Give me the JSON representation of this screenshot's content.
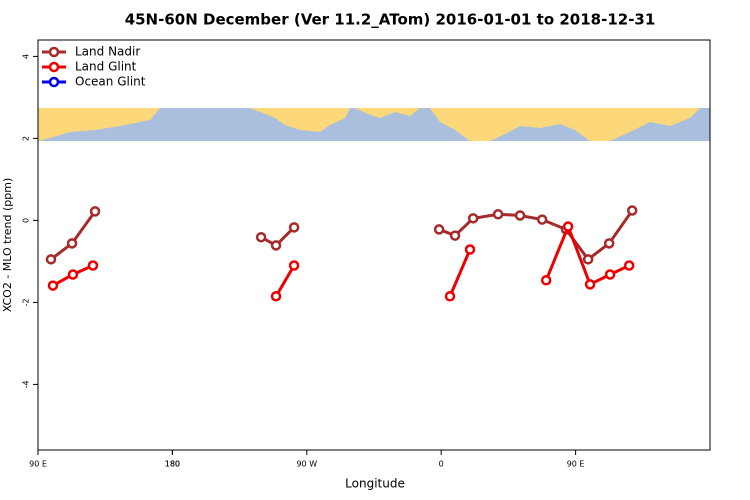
{
  "chart_data": {
    "type": "line",
    "title": "45N-60N December (Ver 11.2_ATom)   2016-01-01 to 2018-12-31",
    "xlabel": "Longitude",
    "ylabel": "XCO2 - MLO trend (ppm)",
    "xlim": [
      90,
      540
    ],
    "ylim": [
      -5.6,
      4.4
    ],
    "xticks": [
      {
        "value": 90,
        "label": "90 E"
      },
      180,
      {
        "value": 270,
        "label": "90 W"
      },
      {
        "value": 360,
        "label": "0"
      },
      {
        "value": 450,
        "label": "90 E"
      },
      180.0001
    ],
    "yticks": [
      4,
      2,
      0,
      -2,
      -4
    ],
    "legend": "top-left",
    "series": [
      {
        "name": "Land Nadir",
        "color": "#a52a2a",
        "x": [
          98.7,
          112.8,
          128.2,
          null,
          239.4,
          249.4,
          261.5,
          null,
          358.6,
          369.3,
          381.4,
          398.1,
          412.8,
          427.6,
          443.6,
          458.4,
          472.5,
          487.9
        ],
        "values": [
          -0.95,
          -0.56,
          0.22,
          null,
          -0.41,
          -0.61,
          -0.17,
          null,
          -0.22,
          -0.37,
          0.05,
          0.15,
          0.12,
          0.02,
          -0.22,
          -0.95,
          -0.56,
          0.24
        ]
      },
      {
        "name": "Land Glint",
        "color": "#ee0000",
        "x": [
          100,
          113.4,
          126.8,
          null,
          249.4,
          261.5,
          null,
          365.9,
          379.3,
          null,
          430.3,
          445.0,
          459.7,
          473.1,
          485.9
        ],
        "values": [
          -1.59,
          -1.32,
          -1.1,
          null,
          -1.85,
          -1.1,
          null,
          -1.85,
          -0.71,
          null,
          -1.46,
          -0.15,
          -1.56,
          -1.32,
          -1.1
        ]
      },
      {
        "name": "Ocean Glint",
        "color": "#0000ee",
        "x": [],
        "values": []
      }
    ]
  }
}
